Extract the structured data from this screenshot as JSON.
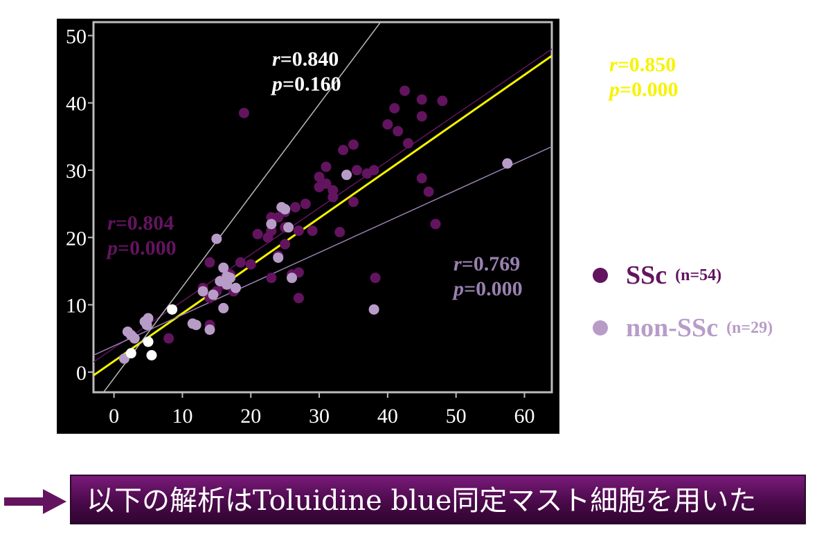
{
  "chart_data": {
    "type": "scatter",
    "xlim": [
      -3,
      64
    ],
    "ylim": [
      -3,
      52
    ],
    "x_ticks": [
      "0",
      "10",
      "20",
      "30",
      "40",
      "50",
      "60"
    ],
    "y_ticks": [
      "0",
      "10",
      "20",
      "30",
      "40",
      "50"
    ],
    "x_tick_values": [
      0,
      10,
      20,
      30,
      40,
      50,
      60
    ],
    "y_tick_values": [
      0,
      10,
      20,
      30,
      40,
      50
    ],
    "grid": false,
    "series": [
      {
        "name": "SSc",
        "n_label": "(n=54)",
        "color": "#63145f",
        "points": [
          [
            19,
            38.5
          ],
          [
            42.5,
            41.8
          ],
          [
            41,
            39.2
          ],
          [
            45,
            40.5
          ],
          [
            48,
            40.3
          ],
          [
            40,
            36.8
          ],
          [
            41.5,
            35.8
          ],
          [
            43,
            34
          ],
          [
            45,
            38
          ],
          [
            33.5,
            33
          ],
          [
            35,
            33.8
          ],
          [
            31,
            28
          ],
          [
            32,
            27
          ],
          [
            30,
            27.5
          ],
          [
            28,
            25
          ],
          [
            26.5,
            24.5
          ],
          [
            25,
            23.8
          ],
          [
            24,
            23
          ],
          [
            23,
            23
          ],
          [
            23,
            21
          ],
          [
            25,
            21.5
          ],
          [
            27,
            21
          ],
          [
            29,
            21
          ],
          [
            31,
            30.5
          ],
          [
            35,
            25.3
          ],
          [
            37,
            29.5
          ],
          [
            38,
            30
          ],
          [
            45,
            28.8
          ],
          [
            46,
            26.8
          ],
          [
            47,
            22
          ],
          [
            33,
            20.8
          ],
          [
            38.2,
            14
          ],
          [
            27,
            14.8
          ],
          [
            21,
            20.5
          ],
          [
            22.5,
            20
          ],
          [
            24,
            17.3
          ],
          [
            25,
            19
          ],
          [
            20,
            16
          ],
          [
            14,
            16.3
          ],
          [
            14,
            7
          ],
          [
            8,
            5
          ],
          [
            23,
            14
          ],
          [
            27,
            11
          ],
          [
            17,
            14.5
          ],
          [
            16,
            13
          ],
          [
            15,
            12
          ],
          [
            13,
            12.5
          ],
          [
            14,
            11
          ],
          [
            17.5,
            12
          ],
          [
            18.5,
            16.3
          ],
          [
            26,
            14.5
          ],
          [
            35.5,
            30
          ],
          [
            30,
            29
          ],
          [
            32,
            26
          ]
        ]
      },
      {
        "name": "non-SSc",
        "n_label": "(n=29)",
        "color": "#b89cc8",
        "points": [
          [
            57.5,
            31
          ],
          [
            34,
            29.3
          ],
          [
            25,
            24.2
          ],
          [
            15,
            19.8
          ],
          [
            16,
            15.5
          ],
          [
            17,
            14
          ],
          [
            16.5,
            14.2
          ],
          [
            15.5,
            13.5
          ],
          [
            16.5,
            13
          ],
          [
            17.8,
            12.5
          ],
          [
            16,
            9.5
          ],
          [
            14,
            6.3
          ],
          [
            11.5,
            7.2
          ],
          [
            12,
            7
          ],
          [
            5,
            8
          ],
          [
            4.5,
            7.5
          ],
          [
            4.8,
            7
          ],
          [
            2,
            6
          ],
          [
            2.5,
            5.5
          ],
          [
            3,
            5
          ],
          [
            1.5,
            2
          ],
          [
            23,
            22
          ],
          [
            24,
            17
          ],
          [
            26,
            14
          ],
          [
            38,
            9.3
          ],
          [
            14.5,
            11.5
          ],
          [
            24.5,
            24.5
          ],
          [
            25.5,
            21.5
          ],
          [
            13,
            12
          ]
        ]
      },
      {
        "name": "",
        "color": "#ffffff",
        "points": [
          [
            8.5,
            9.3
          ],
          [
            5,
            4.5
          ],
          [
            5.5,
            2.5
          ],
          [
            2.5,
            2.8
          ]
        ]
      }
    ],
    "regression_lines": [
      {
        "name": "all",
        "x": [
          -3,
          64
        ],
        "y": [
          -0.5,
          47
        ],
        "color": "#f7f300"
      },
      {
        "name": "SSc",
        "x": [
          -3,
          64
        ],
        "y": [
          1.5,
          48
        ],
        "color": "#63145f"
      },
      {
        "name": "non-SSc",
        "x": [
          -3,
          64
        ],
        "y": [
          2.5,
          33.5
        ],
        "color": "#9a80b0"
      },
      {
        "name": "white",
        "x": [
          -3,
          64
        ],
        "y": [
          -5,
          86
        ],
        "color": "#bbbbbb"
      }
    ]
  },
  "stats": {
    "white": {
      "r_label": "r",
      "r_value": "=0.840",
      "p_label": "p",
      "p_value": "=0.160",
      "color": "#ffffff"
    },
    "all": {
      "r_label": "r",
      "r_value": "=0.850",
      "p_label": "p",
      "p_value": "=0.000",
      "color": "#f7f300"
    },
    "ssc": {
      "r_label": "r",
      "r_value": "=0.804",
      "p_label": "p",
      "p_value": "=0.000",
      "color": "#63145f"
    },
    "non_ssc": {
      "r_label": "r",
      "r_value": "=0.769",
      "p_label": "p",
      "p_value": "=0.000",
      "color": "#9a80b0"
    }
  },
  "legend": [
    {
      "label": "SSc",
      "n": "(n=54)",
      "color": "#63145f"
    },
    {
      "label": "non-SSc",
      "n": "(n=29)",
      "color": "#b89cc8"
    }
  ],
  "caption": {
    "text": "以下の解析はToluidine blue同定マスト細胞を用いた",
    "arrow_color": "#63145f"
  }
}
